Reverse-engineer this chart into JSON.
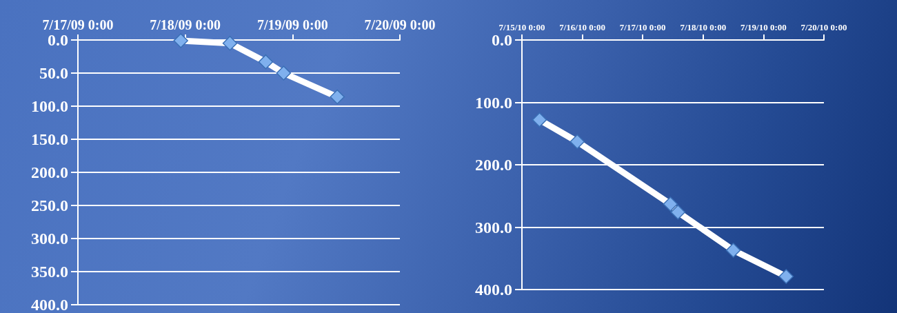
{
  "chart_data": [
    {
      "type": "line",
      "x": [
        "--07-17T23:00",
        "--07-18T10:00",
        "--07-18T18:00",
        "--07-18T22:00",
        "--07-19T10:00"
      ],
      "series": [
        {
          "color": "#ffffff",
          "values": [
            1,
            5,
            33,
            50,
            86
          ]
        }
      ],
      "xlim": [
        "--07-17",
        "--07-20"
      ],
      "xticks": [
        {
          "value": "--07-17",
          "label": "7/17/09 0:00"
        },
        {
          "value": "--07-18",
          "label": "7/18/09 0:00"
        },
        {
          "value": "--07-19",
          "label": "7/19/09 0:00"
        },
        {
          "value": "--07-20",
          "label": "7/20/09 0:00"
        }
      ],
      "ylim": [
        400,
        0
      ],
      "yticks": [
        {
          "value": 0,
          "label": "0.0"
        },
        {
          "value": 50,
          "label": "50.0"
        },
        {
          "value": 100,
          "label": "100.0"
        },
        {
          "value": 150,
          "label": "150.0"
        },
        {
          "value": 200,
          "label": "200.0"
        },
        {
          "value": 250,
          "label": "250.0"
        },
        {
          "value": 300,
          "label": "300.0"
        },
        {
          "value": 350,
          "label": "350.0"
        },
        {
          "value": 400,
          "label": "400.0"
        }
      ],
      "grid": "y",
      "marker": "diamond",
      "line_style": "solid"
    },
    {
      "type": "line",
      "x": [
        "--07-15T07:00",
        "--07-15T22:00",
        "--07-17T11:00",
        "--07-17T14:00",
        "--07-18T12:00",
        "--07-19T09:00"
      ],
      "series": [
        {
          "color": "#ffffff",
          "values": [
            128,
            163,
            263,
            276,
            337,
            379
          ]
        }
      ],
      "xlim": [
        "--07-15",
        "--07-20"
      ],
      "xticks": [
        {
          "value": "--07-15",
          "label": "7/15/10 0:00"
        },
        {
          "value": "--07-16",
          "label": "7/16/10 0:00"
        },
        {
          "value": "--07-17",
          "label": "7/17/10 0:00"
        },
        {
          "value": "--07-18",
          "label": "7/18/10 0:00"
        },
        {
          "value": "--07-19",
          "label": "7/19/10 0:00"
        },
        {
          "value": "--07-20",
          "label": "7/20/10 0:00"
        }
      ],
      "ylim": [
        400,
        0
      ],
      "yticks": [
        {
          "value": 0,
          "label": "0.0"
        },
        {
          "value": 100,
          "label": "100.0"
        },
        {
          "value": 200,
          "label": "200.0"
        },
        {
          "value": 300,
          "label": "300.0"
        },
        {
          "value": 400,
          "label": "400.0"
        }
      ],
      "grid": "y",
      "marker": "diamond",
      "line_style": "solid"
    }
  ]
}
